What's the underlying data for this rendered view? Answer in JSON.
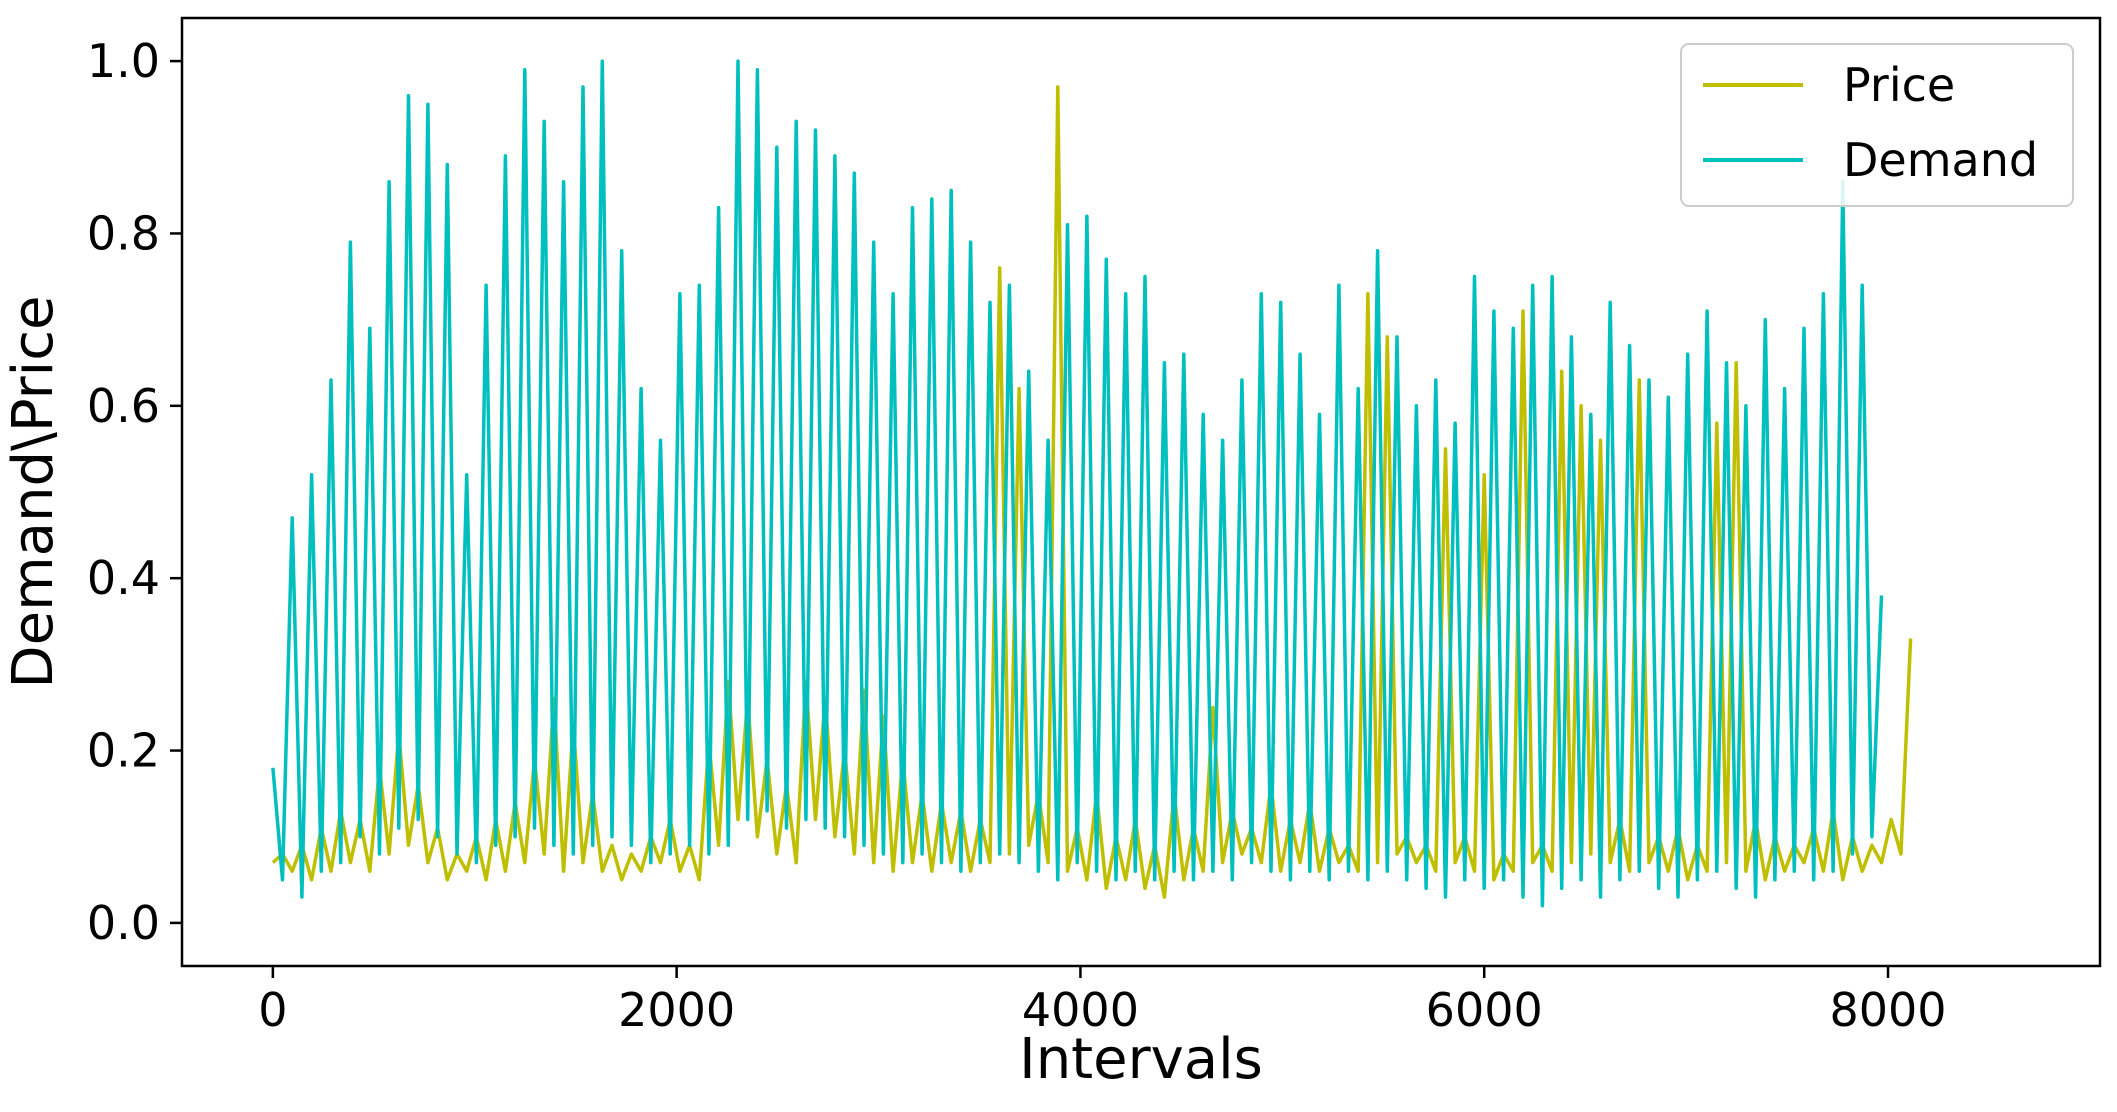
{
  "chart_data": {
    "type": "line",
    "title": "",
    "xlabel": "Intervals",
    "ylabel": "Demand\\Price",
    "xlim": [
      -450,
      9050
    ],
    "ylim": [
      -0.05,
      1.05
    ],
    "xticks": [
      0,
      2000,
      4000,
      6000,
      8000
    ],
    "xtick_labels": [
      "0",
      "2000",
      "4000",
      "6000",
      "8000"
    ],
    "yticks": [
      0.0,
      0.2,
      0.4,
      0.6,
      0.8,
      1.0
    ],
    "ytick_labels": [
      "0.0",
      "0.2",
      "0.4",
      "0.6",
      "0.8",
      "1.0"
    ],
    "grid": false,
    "legend_position": "top-right",
    "x_start": 0,
    "x_step": 48,
    "series": [
      {
        "name": "Price",
        "color": "#bfbf00",
        "values": [
          0.07,
          0.08,
          0.06,
          0.09,
          0.05,
          0.11,
          0.06,
          0.13,
          0.07,
          0.12,
          0.06,
          0.18,
          0.08,
          0.22,
          0.09,
          0.16,
          0.07,
          0.11,
          0.05,
          0.08,
          0.06,
          0.1,
          0.05,
          0.12,
          0.06,
          0.14,
          0.07,
          0.19,
          0.08,
          0.26,
          0.06,
          0.23,
          0.07,
          0.15,
          0.06,
          0.09,
          0.05,
          0.08,
          0.06,
          0.1,
          0.07,
          0.12,
          0.06,
          0.09,
          0.05,
          0.21,
          0.09,
          0.28,
          0.12,
          0.26,
          0.1,
          0.19,
          0.08,
          0.16,
          0.07,
          0.28,
          0.12,
          0.26,
          0.1,
          0.2,
          0.08,
          0.27,
          0.07,
          0.24,
          0.06,
          0.19,
          0.07,
          0.15,
          0.06,
          0.14,
          0.07,
          0.13,
          0.06,
          0.12,
          0.07,
          0.76,
          0.08,
          0.62,
          0.09,
          0.15,
          0.07,
          0.97,
          0.06,
          0.11,
          0.05,
          0.15,
          0.04,
          0.1,
          0.05,
          0.12,
          0.04,
          0.09,
          0.03,
          0.15,
          0.05,
          0.11,
          0.06,
          0.25,
          0.07,
          0.13,
          0.08,
          0.11,
          0.07,
          0.16,
          0.06,
          0.12,
          0.07,
          0.14,
          0.06,
          0.11,
          0.07,
          0.09,
          0.06,
          0.73,
          0.07,
          0.68,
          0.08,
          0.1,
          0.07,
          0.09,
          0.06,
          0.55,
          0.07,
          0.1,
          0.06,
          0.52,
          0.05,
          0.08,
          0.06,
          0.71,
          0.07,
          0.09,
          0.06,
          0.64,
          0.07,
          0.6,
          0.08,
          0.56,
          0.07,
          0.12,
          0.06,
          0.63,
          0.07,
          0.1,
          0.06,
          0.11,
          0.05,
          0.09,
          0.06,
          0.58,
          0.07,
          0.65,
          0.06,
          0.12,
          0.05,
          0.1,
          0.06,
          0.09,
          0.07,
          0.11,
          0.06,
          0.13,
          0.05,
          0.1,
          0.06,
          0.09,
          0.07,
          0.12,
          0.08,
          0.33
        ]
      },
      {
        "name": "Demand",
        "color": "#00bfbf",
        "values": [
          0.18,
          0.05,
          0.47,
          0.03,
          0.52,
          0.06,
          0.63,
          0.07,
          0.79,
          0.1,
          0.69,
          0.08,
          0.86,
          0.11,
          0.96,
          0.12,
          0.95,
          0.1,
          0.88,
          0.08,
          0.52,
          0.07,
          0.74,
          0.09,
          0.89,
          0.1,
          0.99,
          0.11,
          0.93,
          0.09,
          0.86,
          0.08,
          0.97,
          0.09,
          1.0,
          0.1,
          0.78,
          0.09,
          0.62,
          0.07,
          0.56,
          0.08,
          0.73,
          0.09,
          0.74,
          0.08,
          0.83,
          0.09,
          1.0,
          0.12,
          0.99,
          0.13,
          0.9,
          0.11,
          0.93,
          0.12,
          0.92,
          0.11,
          0.89,
          0.1,
          0.87,
          0.09,
          0.79,
          0.08,
          0.73,
          0.07,
          0.83,
          0.08,
          0.84,
          0.07,
          0.85,
          0.06,
          0.79,
          0.07,
          0.72,
          0.08,
          0.74,
          0.07,
          0.64,
          0.06,
          0.56,
          0.05,
          0.81,
          0.07,
          0.82,
          0.06,
          0.77,
          0.05,
          0.73,
          0.06,
          0.75,
          0.05,
          0.65,
          0.06,
          0.66,
          0.05,
          0.59,
          0.06,
          0.56,
          0.05,
          0.63,
          0.07,
          0.73,
          0.06,
          0.72,
          0.05,
          0.66,
          0.06,
          0.59,
          0.05,
          0.74,
          0.06,
          0.62,
          0.05,
          0.78,
          0.06,
          0.68,
          0.05,
          0.6,
          0.04,
          0.63,
          0.03,
          0.58,
          0.05,
          0.75,
          0.04,
          0.71,
          0.05,
          0.69,
          0.03,
          0.74,
          0.02,
          0.75,
          0.04,
          0.68,
          0.05,
          0.59,
          0.03,
          0.72,
          0.05,
          0.67,
          0.06,
          0.63,
          0.04,
          0.61,
          0.03,
          0.66,
          0.05,
          0.71,
          0.06,
          0.65,
          0.04,
          0.6,
          0.03,
          0.7,
          0.05,
          0.62,
          0.06,
          0.69,
          0.05,
          0.73,
          0.06,
          0.86,
          0.08,
          0.74,
          0.1,
          0.38
        ]
      }
    ]
  }
}
